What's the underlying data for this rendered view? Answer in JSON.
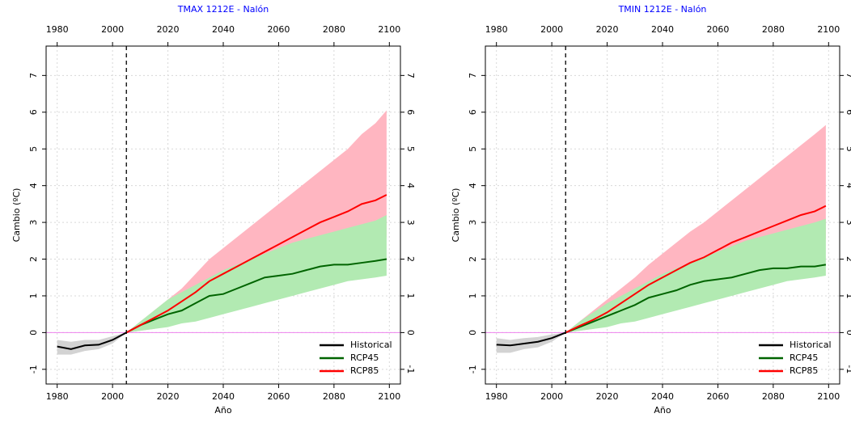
{
  "chart_data": [
    {
      "type": "line",
      "title": "TMAX 1212E - Nalón",
      "title_color": "#0000ff",
      "xlabel": "Año",
      "ylabel": "Cambio (ºC)",
      "xlim": [
        1976,
        2104
      ],
      "ylim": [
        -1.4,
        7.8
      ],
      "xticks": [
        1980,
        2000,
        2020,
        2040,
        2060,
        2080,
        2100
      ],
      "yticks": [
        -1,
        0,
        1,
        2,
        3,
        4,
        5,
        6,
        7
      ],
      "grid": true,
      "vline": 2005,
      "hline": 0,
      "legend": "bottom-right",
      "series": [
        {
          "name": "Historical",
          "color": "#000000",
          "band_color": "#d3d3d3",
          "x": [
            1980,
            1985,
            1990,
            1995,
            2000,
            2005
          ],
          "values": [
            -0.38,
            -0.45,
            -0.35,
            -0.33,
            -0.2,
            0
          ],
          "lower": [
            -0.6,
            -0.6,
            -0.5,
            -0.45,
            -0.3,
            0
          ],
          "upper": [
            -0.2,
            -0.25,
            -0.2,
            -0.2,
            -0.1,
            0
          ]
        },
        {
          "name": "RCP45",
          "color": "#006400",
          "band_color": "#b2eab2",
          "x": [
            2005,
            2010,
            2015,
            2020,
            2025,
            2030,
            2035,
            2040,
            2045,
            2050,
            2055,
            2060,
            2065,
            2070,
            2075,
            2080,
            2085,
            2090,
            2095,
            2099
          ],
          "values": [
            0,
            0.2,
            0.35,
            0.5,
            0.6,
            0.8,
            1.0,
            1.05,
            1.2,
            1.35,
            1.5,
            1.55,
            1.6,
            1.7,
            1.8,
            1.85,
            1.85,
            1.9,
            1.95,
            2.0
          ],
          "lower": [
            0,
            0.05,
            0.1,
            0.15,
            0.25,
            0.3,
            0.4,
            0.5,
            0.6,
            0.7,
            0.8,
            0.9,
            1.0,
            1.1,
            1.2,
            1.3,
            1.4,
            1.45,
            1.5,
            1.55
          ],
          "upper": [
            0,
            0.3,
            0.6,
            0.9,
            1.1,
            1.3,
            1.5,
            1.7,
            1.85,
            2.0,
            2.15,
            2.3,
            2.45,
            2.55,
            2.65,
            2.75,
            2.85,
            2.95,
            3.05,
            3.2
          ]
        },
        {
          "name": "RCP85",
          "color": "#ff0000",
          "band_color": "#ffb6c1",
          "x": [
            2005,
            2010,
            2015,
            2020,
            2025,
            2030,
            2035,
            2040,
            2045,
            2050,
            2055,
            2060,
            2065,
            2070,
            2075,
            2080,
            2085,
            2090,
            2095,
            2099
          ],
          "values": [
            0,
            0.2,
            0.4,
            0.6,
            0.85,
            1.1,
            1.4,
            1.6,
            1.8,
            2.0,
            2.2,
            2.4,
            2.6,
            2.8,
            3.0,
            3.15,
            3.3,
            3.5,
            3.6,
            3.75
          ],
          "lower": [
            0,
            0.05,
            0.1,
            0.2,
            0.35,
            0.5,
            0.65,
            0.8,
            0.95,
            1.1,
            1.25,
            1.4,
            1.55,
            1.7,
            1.85,
            2.0,
            2.15,
            2.35,
            2.5,
            2.6
          ],
          "upper": [
            0,
            0.3,
            0.6,
            0.9,
            1.2,
            1.6,
            2.0,
            2.3,
            2.6,
            2.9,
            3.2,
            3.5,
            3.8,
            4.1,
            4.4,
            4.7,
            5.0,
            5.4,
            5.7,
            6.05
          ]
        }
      ]
    },
    {
      "type": "line",
      "title": "TMIN 1212E - Nalón",
      "title_color": "#0000ff",
      "xlabel": "Año",
      "ylabel": "Cambio (ºC)",
      "xlim": [
        1976,
        2104
      ],
      "ylim": [
        -1.4,
        7.8
      ],
      "xticks": [
        1980,
        2000,
        2020,
        2040,
        2060,
        2080,
        2100
      ],
      "yticks": [
        -1,
        0,
        1,
        2,
        3,
        4,
        5,
        6,
        7
      ],
      "grid": true,
      "vline": 2005,
      "hline": 0,
      "legend": "bottom-right",
      "series": [
        {
          "name": "Historical",
          "color": "#000000",
          "band_color": "#d3d3d3",
          "x": [
            1980,
            1985,
            1990,
            1995,
            2000,
            2005
          ],
          "values": [
            -0.33,
            -0.35,
            -0.3,
            -0.25,
            -0.15,
            0
          ],
          "lower": [
            -0.55,
            -0.55,
            -0.45,
            -0.4,
            -0.25,
            0
          ],
          "upper": [
            -0.15,
            -0.2,
            -0.15,
            -0.12,
            -0.05,
            0
          ]
        },
        {
          "name": "RCP45",
          "color": "#006400",
          "band_color": "#b2eab2",
          "x": [
            2005,
            2010,
            2015,
            2020,
            2025,
            2030,
            2035,
            2040,
            2045,
            2050,
            2055,
            2060,
            2065,
            2070,
            2075,
            2080,
            2085,
            2090,
            2095,
            2099
          ],
          "values": [
            0,
            0.15,
            0.3,
            0.45,
            0.6,
            0.75,
            0.95,
            1.05,
            1.15,
            1.3,
            1.4,
            1.45,
            1.5,
            1.6,
            1.7,
            1.75,
            1.75,
            1.8,
            1.8,
            1.85
          ],
          "lower": [
            0,
            0.05,
            0.1,
            0.15,
            0.25,
            0.3,
            0.4,
            0.5,
            0.6,
            0.7,
            0.8,
            0.9,
            1.0,
            1.1,
            1.2,
            1.3,
            1.4,
            1.45,
            1.5,
            1.55
          ],
          "upper": [
            0,
            0.3,
            0.55,
            0.8,
            1.0,
            1.2,
            1.4,
            1.6,
            1.75,
            1.9,
            2.05,
            2.2,
            2.35,
            2.5,
            2.6,
            2.7,
            2.8,
            2.9,
            3.0,
            3.1
          ]
        },
        {
          "name": "RCP85",
          "color": "#ff0000",
          "band_color": "#ffb6c1",
          "x": [
            2005,
            2010,
            2015,
            2020,
            2025,
            2030,
            2035,
            2040,
            2045,
            2050,
            2055,
            2060,
            2065,
            2070,
            2075,
            2080,
            2085,
            2090,
            2095,
            2099
          ],
          "values": [
            0,
            0.18,
            0.35,
            0.55,
            0.8,
            1.05,
            1.3,
            1.5,
            1.7,
            1.9,
            2.05,
            2.25,
            2.45,
            2.6,
            2.75,
            2.9,
            3.05,
            3.2,
            3.3,
            3.45
          ],
          "lower": [
            0,
            0.05,
            0.1,
            0.2,
            0.35,
            0.5,
            0.65,
            0.8,
            0.95,
            1.1,
            1.25,
            1.4,
            1.55,
            1.7,
            1.85,
            2.0,
            2.15,
            2.3,
            2.45,
            2.55
          ],
          "upper": [
            0,
            0.3,
            0.6,
            0.9,
            1.2,
            1.5,
            1.85,
            2.15,
            2.45,
            2.75,
            3.0,
            3.3,
            3.6,
            3.9,
            4.2,
            4.5,
            4.8,
            5.1,
            5.4,
            5.65
          ]
        }
      ]
    }
  ]
}
